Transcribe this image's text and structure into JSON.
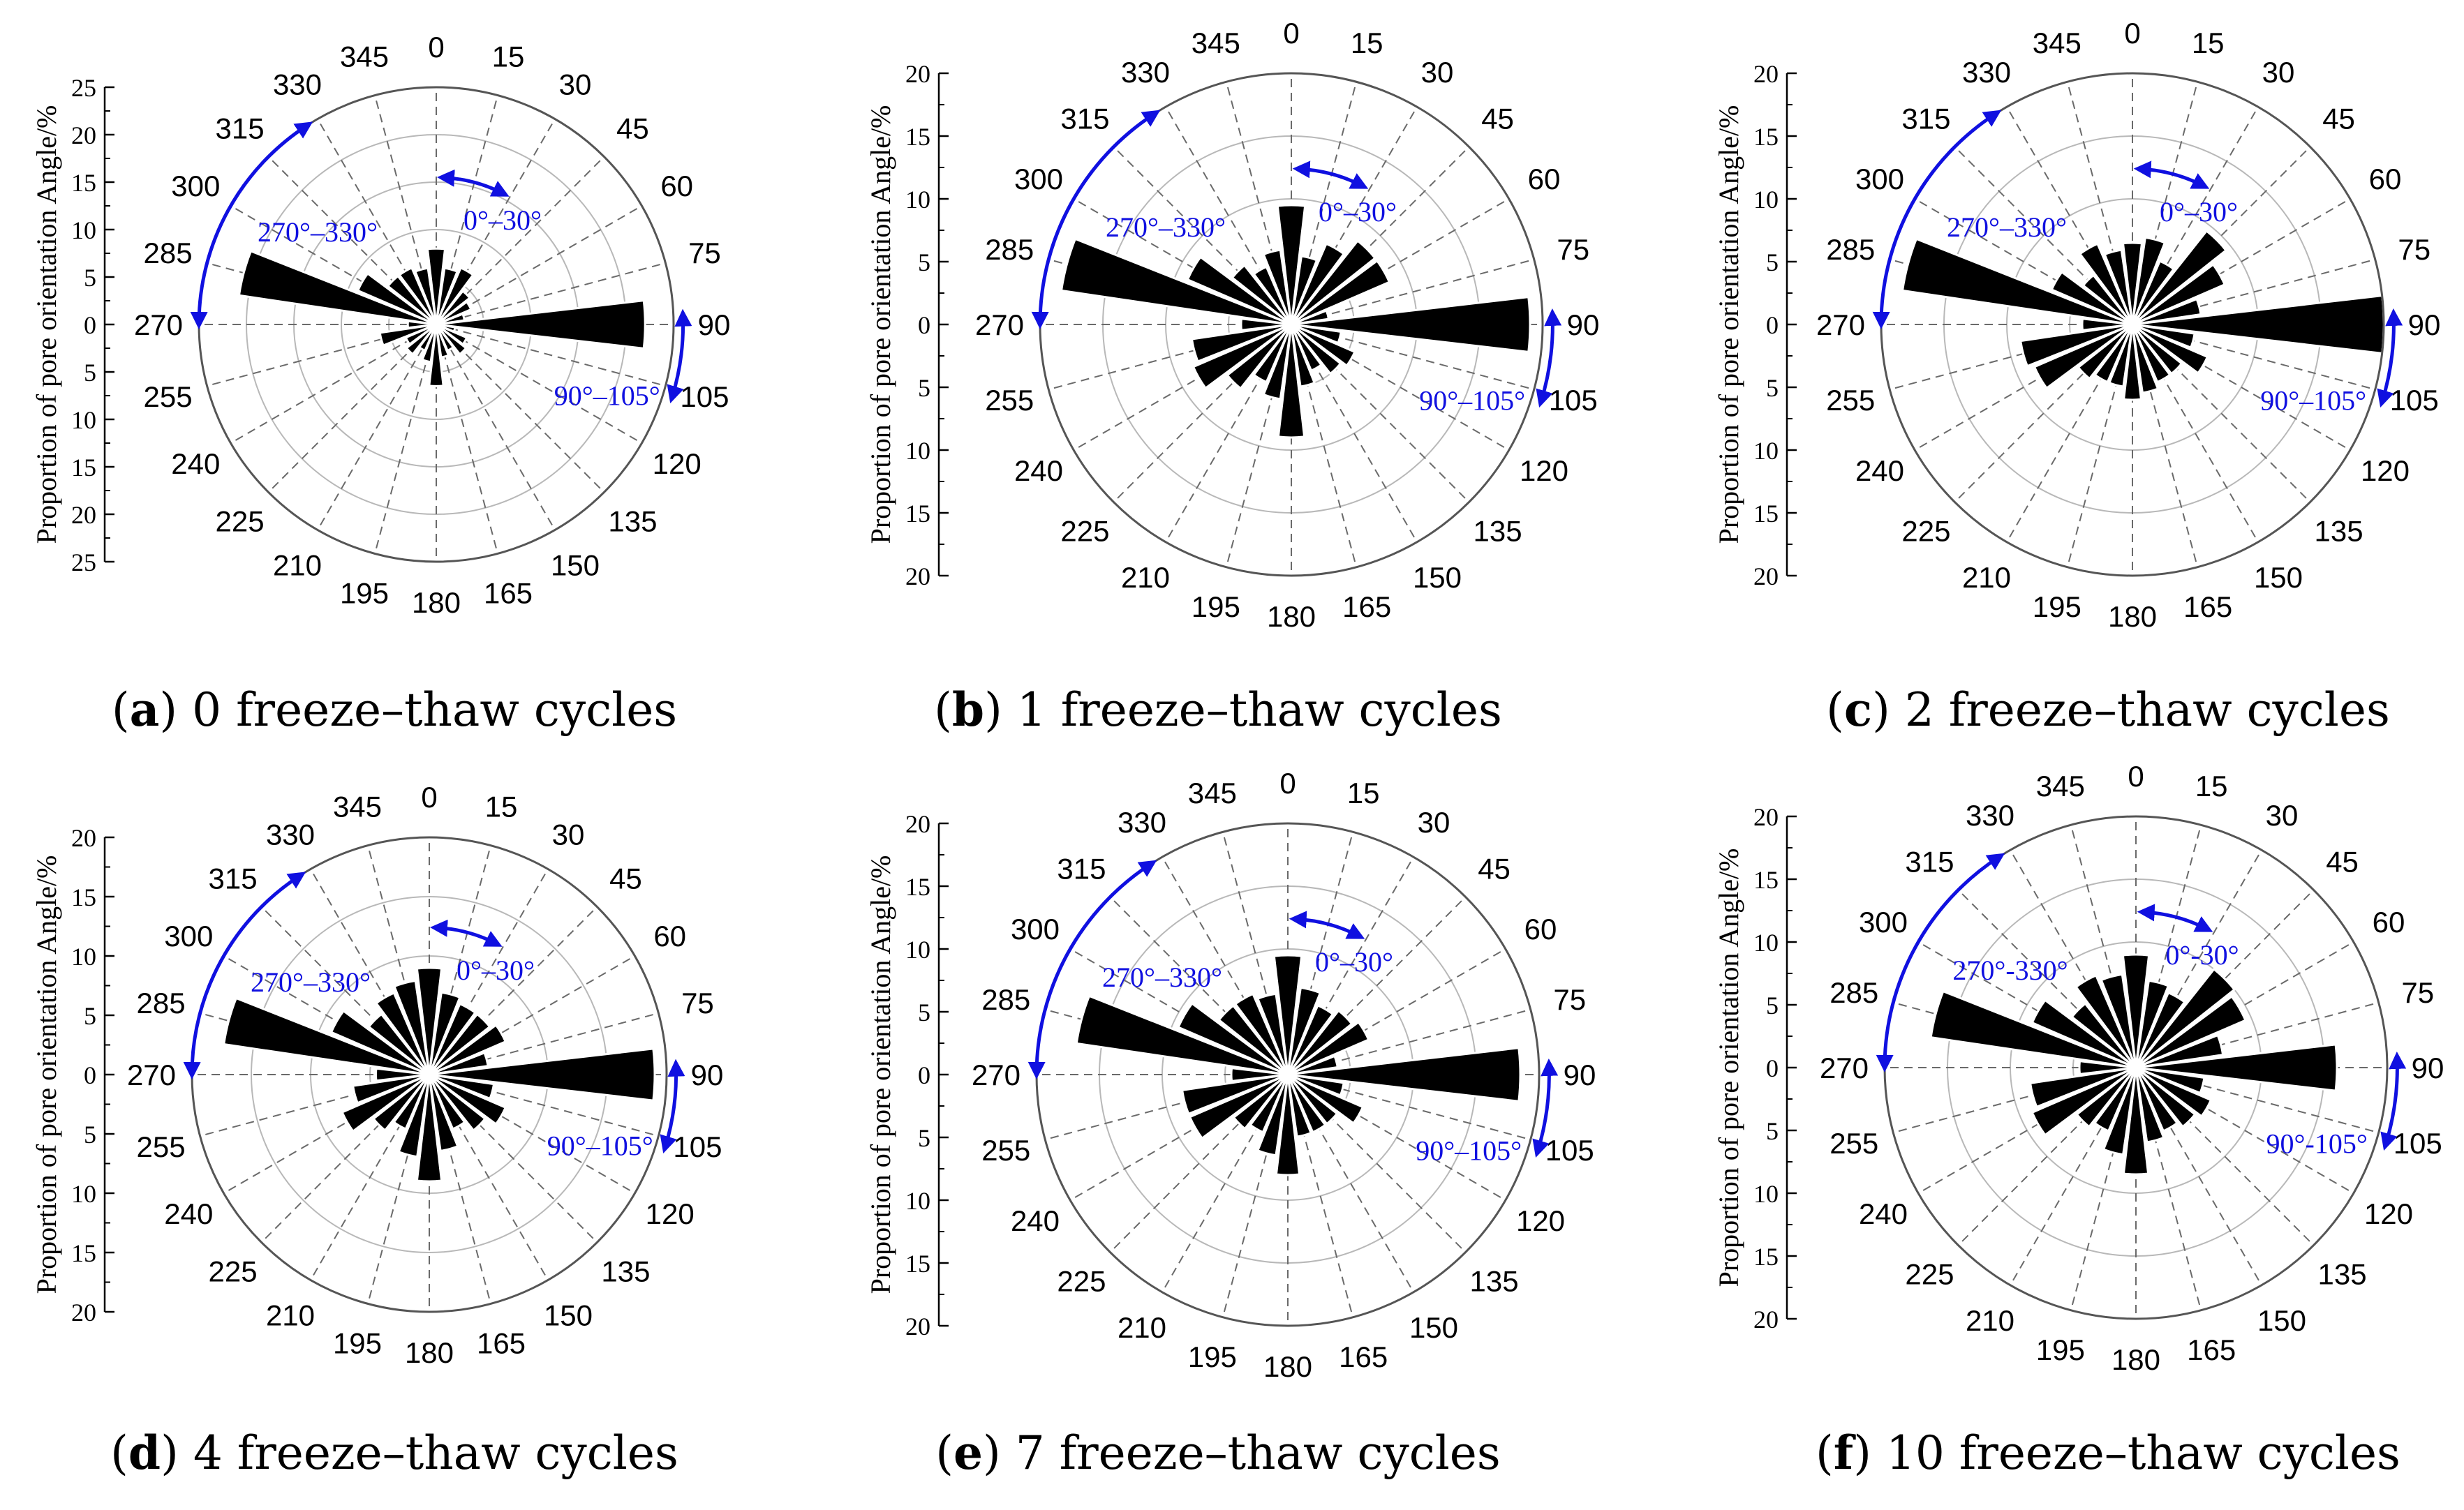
{
  "figure": {
    "common": {
      "ylabel": "Proportion of pore orientation Angle/%",
      "angle_labels": [
        "0",
        "15",
        "30",
        "45",
        "60",
        "75",
        "90",
        "105",
        "120",
        "135",
        "150",
        "165",
        "180",
        "195",
        "210",
        "225",
        "240",
        "255",
        "270",
        "285",
        "300",
        "315",
        "330",
        "345"
      ],
      "annotation_color": "#1010e0",
      "bar_color": "#000000",
      "annotations": [
        {
          "label": "0°–30°",
          "from": 0,
          "to": 30
        },
        {
          "label": "270°–330°",
          "from": 270,
          "to": 330
        },
        {
          "label": "90°–105°",
          "from": 90,
          "to": 105
        }
      ]
    },
    "panels": [
      {
        "letter": "a",
        "caption": "0 freeze–thaw cycles",
        "rmax": 25,
        "ticks": [
          "25",
          "20",
          "15",
          "10",
          "5",
          "0",
          "5",
          "10",
          "15",
          "20",
          "25"
        ],
        "annotation_labels": [
          "0°–30°",
          "270°–330°",
          "90°–105°"
        ]
      },
      {
        "letter": "b",
        "caption": "1 freeze–thaw cycles",
        "rmax": 20,
        "ticks": [
          "20",
          "15",
          "10",
          "5",
          "0",
          "5",
          "10",
          "15",
          "20"
        ],
        "annotation_labels": [
          "0°–30°",
          "270°–330°",
          "90°–105°"
        ]
      },
      {
        "letter": "c",
        "caption": "2 freeze–thaw cycles",
        "rmax": 20,
        "ticks": [
          "20",
          "15",
          "10",
          "5",
          "0",
          "5",
          "10",
          "15",
          "20"
        ],
        "annotation_labels": [
          "0°–30°",
          "270°–330°",
          "90°–105°"
        ]
      },
      {
        "letter": "d",
        "caption": "4 freeze–thaw cycles",
        "rmax": 20,
        "ticks": [
          "20",
          "15",
          "10",
          "5",
          "0",
          "5",
          "10",
          "15",
          "20"
        ],
        "annotation_labels": [
          "0°–30°",
          "270°–330°",
          "90°–105°"
        ]
      },
      {
        "letter": "e",
        "caption": "7 freeze–thaw cycles",
        "rmax": 20,
        "ticks": [
          "20",
          "15",
          "10",
          "5",
          "0",
          "5",
          "10",
          "15",
          "20"
        ],
        "annotation_labels": [
          "0°–30°",
          "270°–330°",
          "90°–105°"
        ]
      },
      {
        "letter": "f",
        "caption": "10 freeze–thaw cycles",
        "rmax": 20,
        "ticks": [
          "20",
          "15",
          "10",
          "5",
          "0",
          "5",
          "10",
          "15",
          "20"
        ],
        "annotation_labels": [
          "0°-30°",
          "270°-330°",
          "90°-105°"
        ]
      }
    ]
  },
  "chart_data": [
    {
      "type": "rose",
      "title": "(a) 0 freeze–thaw cycles",
      "ylabel": "Proportion of pore orientation Angle/%",
      "ylim": [
        0,
        25
      ],
      "bin_width_deg": 15,
      "series": [
        {
          "name": "",
          "angles_deg": [
            0,
            15,
            30,
            45,
            60,
            75,
            90,
            105,
            120,
            135,
            150,
            165,
            180,
            195,
            210,
            225,
            240,
            255,
            270,
            285,
            300,
            315,
            330,
            345
          ],
          "values": [
            8,
            6,
            6.5,
            4.5,
            4,
            3,
            22,
            2,
            3.5,
            4,
            3,
            3.5,
            6.5,
            4,
            3,
            4,
            3.5,
            6,
            3,
            21,
            9,
            6.5,
            6.5,
            6
          ]
        }
      ]
    },
    {
      "type": "rose",
      "title": "(b) 1 freeze–thaw cycles",
      "ylabel": "Proportion of pore orientation Angle/%",
      "ylim": [
        0,
        20
      ],
      "bin_width_deg": 15,
      "series": [
        {
          "name": "",
          "angles_deg": [
            0,
            15,
            30,
            45,
            60,
            75,
            90,
            105,
            120,
            135,
            150,
            165,
            180,
            195,
            210,
            225,
            240,
            255,
            270,
            285,
            300,
            315,
            330,
            345
          ],
          "values": [
            9.5,
            5.5,
            7,
            8.5,
            8.5,
            3,
            19,
            4,
            5.5,
            5,
            4,
            5,
            9,
            6,
            5,
            6.5,
            8.5,
            8,
            4,
            18.5,
            9,
            6,
            5,
            6
          ]
        }
      ]
    },
    {
      "type": "rose",
      "title": "(c) 2 freeze–thaw cycles",
      "ylabel": "Proportion of pore orientation Angle/%",
      "ylim": [
        0,
        20
      ],
      "bin_width_deg": 15,
      "series": [
        {
          "name": "",
          "angles_deg": [
            0,
            15,
            30,
            45,
            60,
            75,
            90,
            105,
            120,
            135,
            150,
            165,
            180,
            195,
            210,
            225,
            240,
            255,
            270,
            285,
            300,
            315,
            330,
            345
          ],
          "values": [
            6.5,
            7,
            5.5,
            9.5,
            8,
            5.5,
            20,
            5,
            6.5,
            5,
            5,
            5.5,
            6,
            5,
            5,
            5.5,
            8.5,
            9,
            4,
            18.5,
            7,
            5,
            7,
            6
          ]
        }
      ]
    },
    {
      "type": "rose",
      "title": "(d) 4 freeze–thaw cycles",
      "ylabel": "Proportion of pore orientation Angle/%",
      "ylim": [
        0,
        20
      ],
      "bin_width_deg": 15,
      "series": [
        {
          "name": "",
          "angles_deg": [
            0,
            15,
            30,
            45,
            60,
            75,
            90,
            105,
            120,
            135,
            150,
            165,
            180,
            195,
            210,
            225,
            240,
            255,
            270,
            285,
            300,
            315,
            330,
            345
          ],
          "values": [
            9,
            7,
            6.5,
            6.5,
            7,
            5,
            19,
            5.5,
            7,
            6,
            5,
            6.5,
            9,
            7,
            5,
            6,
            8,
            6.5,
            4.5,
            17.5,
            9,
            6.5,
            7.5,
            8
          ]
        }
      ]
    },
    {
      "type": "rose",
      "title": "(e) 7 freeze–thaw cycles",
      "ylabel": "Proportion of pore orientation Angle/%",
      "ylim": [
        0,
        20
      ],
      "bin_width_deg": 15,
      "series": [
        {
          "name": "",
          "angles_deg": [
            0,
            15,
            30,
            45,
            60,
            75,
            90,
            105,
            120,
            135,
            150,
            165,
            180,
            195,
            210,
            225,
            240,
            255,
            270,
            285,
            300,
            315,
            330,
            345
          ],
          "values": [
            9.5,
            7,
            6,
            6.5,
            7,
            4,
            18.5,
            4.5,
            6.5,
            5,
            5,
            5,
            8,
            6.5,
            5,
            5.5,
            8.5,
            8.5,
            4.5,
            17,
            9.5,
            7,
            7,
            6.5
          ]
        }
      ]
    },
    {
      "type": "rose",
      "title": "(f) 10 freeze–thaw cycles",
      "ylabel": "Proportion of pore orientation Angle/%",
      "ylim": [
        0,
        20
      ],
      "bin_width_deg": 15,
      "series": [
        {
          "name": "",
          "angles_deg": [
            0,
            15,
            30,
            45,
            60,
            75,
            90,
            105,
            120,
            135,
            150,
            165,
            180,
            195,
            210,
            225,
            240,
            255,
            270,
            285,
            300,
            315,
            330,
            345
          ],
          "values": [
            9,
            7,
            6.5,
            10,
            9.5,
            7,
            16,
            5.5,
            6.5,
            6,
            5.5,
            6,
            8.5,
            7,
            5.5,
            6,
            9,
            8.5,
            4.5,
            16.5,
            9,
            6.5,
            8,
            7.5
          ]
        }
      ]
    }
  ]
}
